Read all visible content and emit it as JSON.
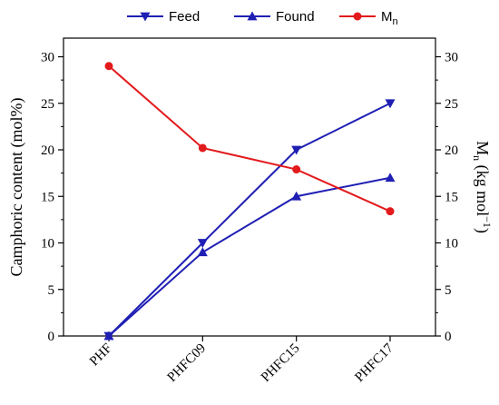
{
  "chart_data": {
    "type": "line",
    "categories": [
      "PHF",
      "PHFC09",
      "PHFC15",
      "PHFC17"
    ],
    "y_left": {
      "label": "Camphoric content (mol%)",
      "ylim": [
        0,
        32
      ],
      "ticks": [
        0,
        5,
        10,
        15,
        20,
        25,
        30
      ],
      "tick_labels": [
        "0",
        "5",
        "10",
        "15",
        "20",
        "25",
        "30"
      ]
    },
    "y_right": {
      "label_main": "M",
      "label_sub": "n",
      "label_rest_1": " (kg mol",
      "label_sup": "−1",
      "label_rest_2": ")",
      "ylim": [
        0,
        32
      ],
      "ticks": [
        0,
        5,
        10,
        15,
        20,
        25,
        30
      ],
      "tick_labels": [
        "0",
        "5",
        "10",
        "15",
        "20",
        "25",
        "30"
      ]
    },
    "series": [
      {
        "name": "Feed",
        "axis": "left",
        "marker": "triangle-down",
        "color": "#1f1fb4",
        "values": [
          0,
          10,
          20,
          25
        ]
      },
      {
        "name": "Found",
        "axis": "left",
        "marker": "triangle-up",
        "color": "#1f1fb4",
        "values": [
          0,
          9,
          15,
          17
        ]
      },
      {
        "name": "M",
        "name_sub": "n",
        "axis": "right",
        "marker": "circle",
        "color": "#e31a1c",
        "values": [
          29,
          20.2,
          17.9,
          13.4
        ]
      }
    ],
    "legend_position": "top",
    "grid": false
  }
}
